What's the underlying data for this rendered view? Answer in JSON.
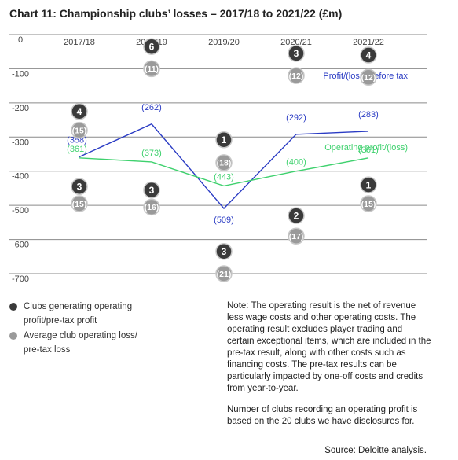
{
  "chart_data": {
    "type": "line",
    "title": "Chart 11: Championship clubs’ losses – 2017/18 to 2021/22 (£m)",
    "categories": [
      "2017/18",
      "2018/19",
      "2019/20",
      "2020/21",
      "2021/22"
    ],
    "ylim": [
      -700,
      0
    ],
    "yticks": [
      0,
      -100,
      -200,
      -300,
      -400,
      -500,
      -600,
      -700
    ],
    "grid": true,
    "series": [
      {
        "name": "Profit/(loss) before tax",
        "values": [
          -358,
          -262,
          -509,
          -292,
          -283
        ],
        "labels": [
          "(358)",
          "(262)",
          "(509)",
          "(292)",
          "(283)"
        ],
        "color": "#2b3cc4"
      },
      {
        "name": "Operating profit/(loss)",
        "values": [
          -361,
          -373,
          -443,
          -400,
          -361
        ],
        "labels": [
          "(361)",
          "(373)",
          "(443)",
          "(400)",
          "(361)"
        ],
        "color": "#3fd16e"
      }
    ],
    "markers": {
      "pretax_profit_clubs": {
        "values": [
          "4",
          "6",
          "1",
          "3",
          "4"
        ],
        "y": [
          -225,
          -35,
          -308,
          -55,
          -60
        ]
      },
      "pretax_avg_loss": {
        "values": [
          "(15)",
          "(11)",
          "(18)",
          "(12)",
          "(12)"
        ],
        "y": [
          -280,
          -100,
          -375,
          -120,
          -125
        ]
      },
      "operating_profit_clubs": {
        "values": [
          "3",
          "3",
          "3",
          "2",
          "1"
        ],
        "y": [
          -445,
          -455,
          -635,
          -530,
          -440
        ]
      },
      "operating_avg_loss": {
        "values": [
          "(15)",
          "(16)",
          "(21)",
          "(17)",
          "(15)"
        ],
        "y": [
          -495,
          -505,
          -700,
          -590,
          -495
        ]
      }
    },
    "legend": [
      {
        "label": "Clubs generating operating profit/pre-tax profit",
        "color": "#3a3a3a"
      },
      {
        "label": "Average club operating loss/ pre-tax loss",
        "color": "#9a9a9a"
      }
    ]
  },
  "note": {
    "paragraph1": "Note: The operating result is the net of revenue less wage costs and other operating costs. The operating result excludes player trading and certain exceptional items, which are included in the pre-tax result, along with other costs such as financing costs. The pre-tax results can be particularly impacted by one-off costs and credits from year-to-year.",
    "paragraph2": "Number of clubs recording an operating profit is based on the 20 clubs we have disclosures for."
  },
  "source": "Source: Deloitte analysis."
}
